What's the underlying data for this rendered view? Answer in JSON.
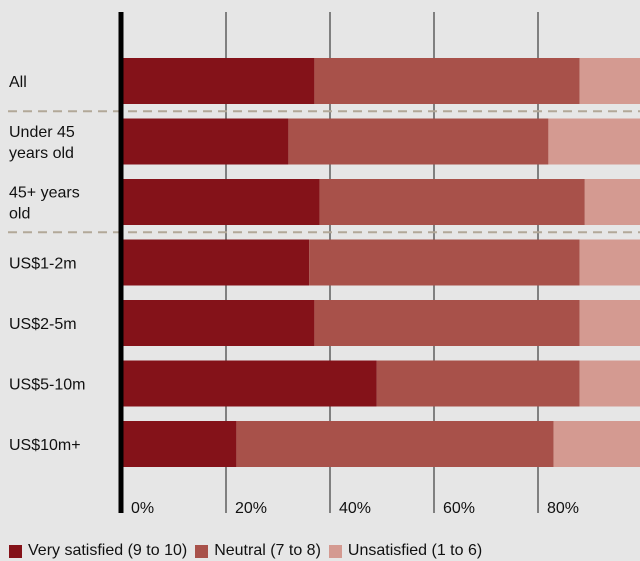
{
  "chart_data": {
    "type": "bar",
    "orientation": "horizontal",
    "stacked": true,
    "categories": [
      "All",
      "Under 45 years old",
      "45+ years old",
      "US$1-2m",
      "US$2-5m",
      "US$5-10m",
      "US$10m+"
    ],
    "category_lines": [
      [
        "All"
      ],
      [
        "Under 45",
        "years old"
      ],
      [
        "45+ years",
        "old"
      ],
      [
        "US$1-2m"
      ],
      [
        "US$2-5m"
      ],
      [
        "US$5-10m"
      ],
      [
        "US$10m+"
      ]
    ],
    "series": [
      {
        "name": "Very satisfied (9 to 10)",
        "color": "#841219",
        "values": [
          37,
          32,
          38,
          36,
          37,
          49,
          22
        ]
      },
      {
        "name": "Neutral (7 to 8)",
        "color": "#a8514a",
        "values": [
          51,
          50,
          51,
          52,
          51,
          39,
          61
        ]
      },
      {
        "name": "Unsatisfied (1 to 6)",
        "color": "#d49a91",
        "values": [
          12,
          18,
          11,
          12,
          12,
          12,
          17
        ]
      }
    ],
    "xlim": [
      0,
      100
    ],
    "xticks": [
      0,
      20,
      40,
      60,
      80
    ],
    "xtick_labels": [
      "0%",
      "20%",
      "40%",
      "60%",
      "80%"
    ],
    "grid": true,
    "group_dividers_after": [
      0,
      2
    ],
    "legend_position": "bottom-left",
    "xlabel": "",
    "ylabel": "",
    "title": ""
  }
}
